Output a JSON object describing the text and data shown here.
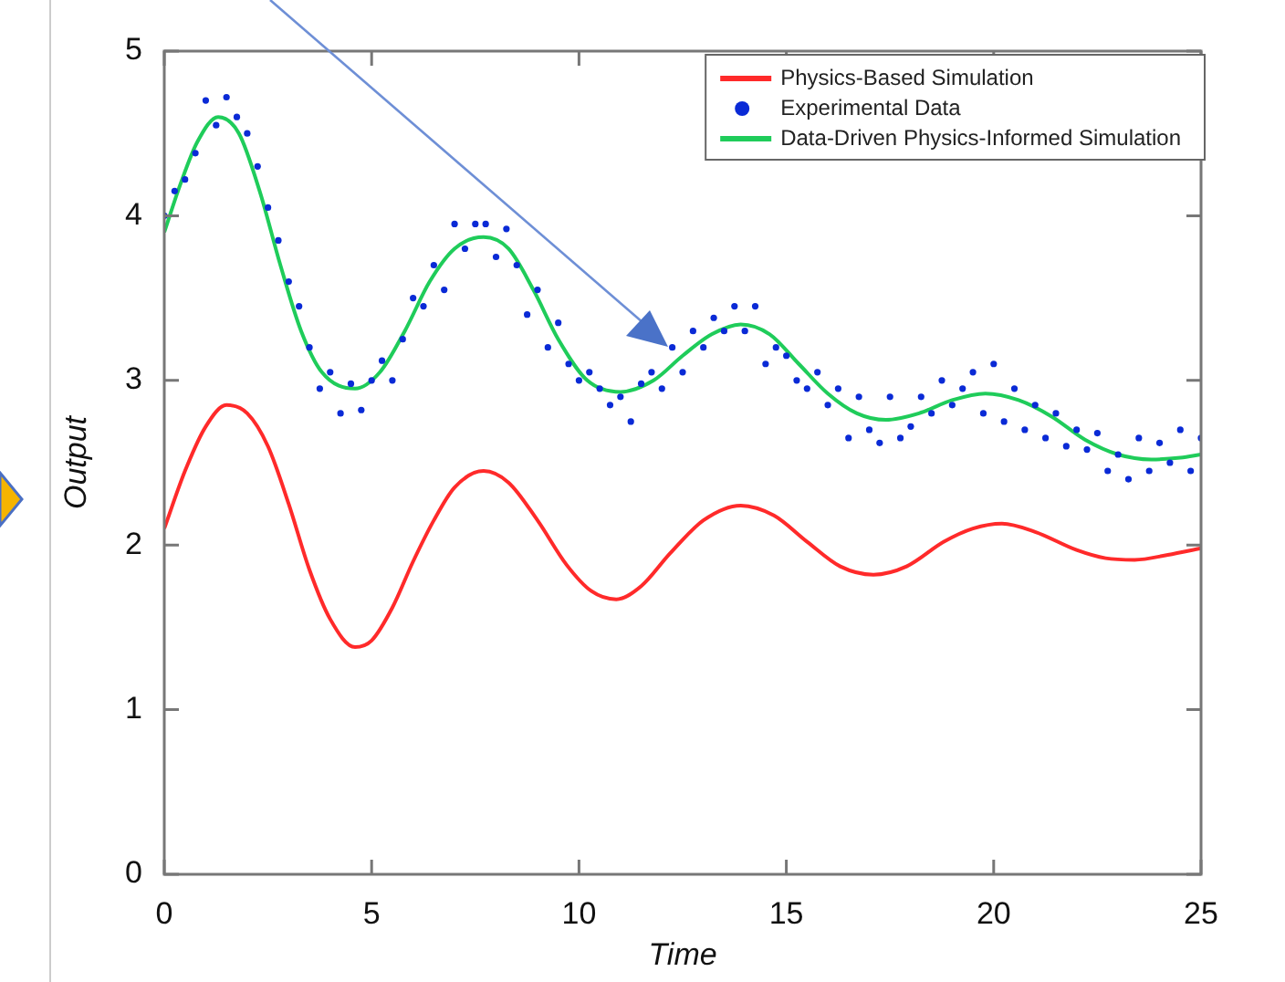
{
  "chart_data": {
    "type": "line",
    "xlabel": "Time",
    "ylabel": "Output",
    "xlim": [
      0,
      25
    ],
    "xticks": [
      0,
      5,
      10,
      15,
      20,
      25
    ],
    "ylim": [
      0,
      5
    ],
    "yticks": [
      0,
      1,
      2,
      3,
      4,
      5
    ],
    "legend": "top right",
    "series": [
      {
        "name": "Physics-Based Simulation",
        "type": "line",
        "color": "#ff2a2a",
        "marker": "none",
        "x": [
          0,
          0.5,
          1,
          1.5,
          2,
          2.5,
          3,
          3.5,
          4,
          4.6,
          5,
          5.5,
          6,
          6.5,
          7,
          7.7,
          8.3,
          9,
          9.7,
          10.3,
          10.9,
          11.5,
          12.2,
          13,
          13.9,
          14.7,
          15.5,
          16.3,
          17.1,
          17.9,
          18.8,
          19.5,
          20.2,
          21,
          22,
          22.7,
          23.4,
          24.2,
          25
        ],
        "values": [
          2.1,
          2.45,
          2.72,
          2.85,
          2.8,
          2.6,
          2.25,
          1.85,
          1.55,
          1.38,
          1.42,
          1.62,
          1.9,
          2.15,
          2.35,
          2.45,
          2.38,
          2.15,
          1.88,
          1.72,
          1.67,
          1.75,
          1.95,
          2.15,
          2.24,
          2.18,
          2.02,
          1.87,
          1.82,
          1.87,
          2.02,
          2.1,
          2.13,
          2.08,
          1.97,
          1.92,
          1.91,
          1.94,
          1.98
        ]
      },
      {
        "name": "Experimental Data",
        "type": "scatter",
        "color": "#0a2ad6",
        "marker": "circle",
        "x": [
          0,
          0.25,
          0.5,
          0.75,
          1,
          1.25,
          1.5,
          1.75,
          2,
          2.25,
          2.5,
          2.75,
          3,
          3.25,
          3.5,
          3.75,
          4,
          4.25,
          4.5,
          4.75,
          5,
          5.25,
          5.5,
          5.75,
          6,
          6.25,
          6.5,
          6.75,
          7,
          7.25,
          7.5,
          7.75,
          8,
          8.25,
          8.5,
          8.75,
          9,
          9.25,
          9.5,
          9.75,
          10,
          10.25,
          10.5,
          10.75,
          11,
          11.25,
          11.5,
          11.75,
          12,
          12.25,
          12.5,
          12.75,
          13,
          13.25,
          13.5,
          13.75,
          14,
          14.25,
          14.5,
          14.75,
          15,
          15.25,
          15.5,
          15.75,
          16,
          16.25,
          16.5,
          16.75,
          17,
          17.25,
          17.5,
          17.75,
          18,
          18.25,
          18.5,
          18.75,
          19,
          19.25,
          19.5,
          19.75,
          20,
          20.25,
          20.5,
          20.75,
          21,
          21.25,
          21.5,
          21.75,
          22,
          22.25,
          22.5,
          22.75,
          23,
          23.25,
          23.5,
          23.75,
          24,
          24.25,
          24.5,
          24.75,
          25
        ],
        "values": [
          4.0,
          4.15,
          4.22,
          4.38,
          4.7,
          4.55,
          4.72,
          4.6,
          4.5,
          4.3,
          4.05,
          3.85,
          3.6,
          3.45,
          3.2,
          2.95,
          3.05,
          2.8,
          2.98,
          2.82,
          3.0,
          3.12,
          3.0,
          3.25,
          3.5,
          3.45,
          3.7,
          3.55,
          3.95,
          3.8,
          3.95,
          3.95,
          3.75,
          3.92,
          3.7,
          3.4,
          3.55,
          3.2,
          3.35,
          3.1,
          3.0,
          3.05,
          2.95,
          2.85,
          2.9,
          2.75,
          2.98,
          3.05,
          2.95,
          3.2,
          3.05,
          3.3,
          3.2,
          3.38,
          3.3,
          3.45,
          3.3,
          3.45,
          3.1,
          3.2,
          3.15,
          3.0,
          2.95,
          3.05,
          2.85,
          2.95,
          2.65,
          2.9,
          2.7,
          2.62,
          2.9,
          2.65,
          2.72,
          2.9,
          2.8,
          3.0,
          2.85,
          2.95,
          3.05,
          2.8,
          3.1,
          2.75,
          2.95,
          2.7,
          2.85,
          2.65,
          2.8,
          2.6,
          2.7,
          2.58,
          2.68,
          2.45,
          2.55,
          2.4,
          2.65,
          2.45,
          2.62,
          2.5,
          2.7,
          2.45,
          2.65
        ]
      },
      {
        "name": "Data-Driven Physics-Informed Simulation",
        "type": "line",
        "color": "#1fcc5a",
        "marker": "none",
        "x": [
          0,
          0.4,
          0.8,
          1.3,
          1.8,
          2.3,
          2.8,
          3.3,
          3.8,
          4.6,
          5.2,
          5.8,
          6.4,
          7,
          7.7,
          8.3,
          8.9,
          9.5,
          10.2,
          11,
          11.8,
          12.5,
          13.2,
          13.9,
          14.6,
          15.3,
          16,
          16.7,
          17.4,
          18.2,
          19,
          19.8,
          20.6,
          21.4,
          22.2,
          23,
          23.8,
          24.5,
          25
        ],
        "values": [
          3.9,
          4.2,
          4.45,
          4.6,
          4.5,
          4.15,
          3.7,
          3.3,
          3.05,
          2.95,
          3.05,
          3.3,
          3.6,
          3.8,
          3.87,
          3.8,
          3.55,
          3.25,
          3.0,
          2.93,
          3.0,
          3.15,
          3.28,
          3.34,
          3.28,
          3.1,
          2.92,
          2.8,
          2.76,
          2.8,
          2.88,
          2.92,
          2.88,
          2.78,
          2.64,
          2.55,
          2.52,
          2.53,
          2.55
        ]
      }
    ]
  }
}
